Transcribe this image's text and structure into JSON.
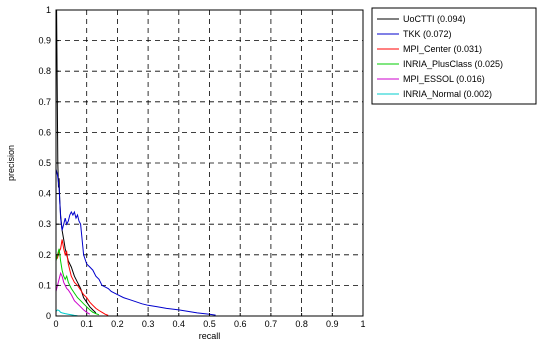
{
  "chart_data": {
    "type": "line",
    "title": "",
    "xlabel": "recall",
    "ylabel": "precision",
    "xlim": [
      0,
      1
    ],
    "ylim": [
      0,
      1
    ],
    "x_ticks": [
      "0",
      "0.1",
      "0.2",
      "0.3",
      "0.4",
      "0.5",
      "0.6",
      "0.7",
      "0.8",
      "0.9",
      "1"
    ],
    "y_ticks": [
      "0",
      "0.1",
      "0.2",
      "0.3",
      "0.4",
      "0.5",
      "0.6",
      "0.7",
      "0.8",
      "0.9",
      "1"
    ],
    "grid": true,
    "grid_style": "dashed",
    "legend_position": "outside-top-right",
    "series": [
      {
        "name": "UoCTTI (0.094)",
        "color": "#000000",
        "points": [
          [
            0,
            1.0
          ],
          [
            0.002,
            1.0
          ],
          [
            0.004,
            0.75
          ],
          [
            0.006,
            0.5
          ],
          [
            0.008,
            0.42
          ],
          [
            0.01,
            0.45
          ],
          [
            0.012,
            0.38
          ],
          [
            0.015,
            0.33
          ],
          [
            0.018,
            0.3
          ],
          [
            0.02,
            0.28
          ],
          [
            0.025,
            0.25
          ],
          [
            0.03,
            0.22
          ],
          [
            0.035,
            0.2
          ],
          [
            0.04,
            0.18
          ],
          [
            0.05,
            0.16
          ],
          [
            0.06,
            0.13
          ],
          [
            0.07,
            0.11
          ],
          [
            0.08,
            0.09
          ],
          [
            0.09,
            0.06
          ],
          [
            0.1,
            0.045
          ],
          [
            0.11,
            0.03
          ],
          [
            0.12,
            0.02
          ],
          [
            0.13,
            0.01
          ]
        ]
      },
      {
        "name": "TKK (0.072)",
        "color": "#0000cc",
        "points": [
          [
            0,
            0.48
          ],
          [
            0.005,
            0.46
          ],
          [
            0.01,
            0.42
          ],
          [
            0.015,
            0.32
          ],
          [
            0.02,
            0.28
          ],
          [
            0.025,
            0.3
          ],
          [
            0.03,
            0.32
          ],
          [
            0.035,
            0.3
          ],
          [
            0.04,
            0.31
          ],
          [
            0.045,
            0.33
          ],
          [
            0.05,
            0.34
          ],
          [
            0.055,
            0.33
          ],
          [
            0.06,
            0.34
          ],
          [
            0.065,
            0.32
          ],
          [
            0.07,
            0.33
          ],
          [
            0.075,
            0.31
          ],
          [
            0.08,
            0.3
          ],
          [
            0.085,
            0.25
          ],
          [
            0.09,
            0.2
          ],
          [
            0.1,
            0.17
          ],
          [
            0.11,
            0.16
          ],
          [
            0.12,
            0.15
          ],
          [
            0.13,
            0.13
          ],
          [
            0.14,
            0.12
          ],
          [
            0.15,
            0.1
          ],
          [
            0.16,
            0.095
          ],
          [
            0.17,
            0.09
          ],
          [
            0.18,
            0.08
          ],
          [
            0.2,
            0.07
          ],
          [
            0.22,
            0.06
          ],
          [
            0.25,
            0.05
          ],
          [
            0.28,
            0.04
          ],
          [
            0.3,
            0.035
          ],
          [
            0.33,
            0.03
          ],
          [
            0.36,
            0.025
          ],
          [
            0.4,
            0.02
          ],
          [
            0.43,
            0.015
          ],
          [
            0.46,
            0.01
          ],
          [
            0.5,
            0.006
          ],
          [
            0.52,
            0.003
          ]
        ]
      },
      {
        "name": "MPI_Center (0.031)",
        "color": "#ff0000",
        "points": [
          [
            0,
            0.2
          ],
          [
            0.005,
            0.19
          ],
          [
            0.01,
            0.21
          ],
          [
            0.015,
            0.22
          ],
          [
            0.02,
            0.25
          ],
          [
            0.025,
            0.22
          ],
          [
            0.03,
            0.2
          ],
          [
            0.035,
            0.21
          ],
          [
            0.04,
            0.17
          ],
          [
            0.045,
            0.15
          ],
          [
            0.05,
            0.13
          ],
          [
            0.055,
            0.12
          ],
          [
            0.06,
            0.11
          ],
          [
            0.07,
            0.1
          ],
          [
            0.08,
            0.085
          ],
          [
            0.09,
            0.07
          ],
          [
            0.1,
            0.06
          ],
          [
            0.11,
            0.045
          ],
          [
            0.12,
            0.035
          ],
          [
            0.13,
            0.025
          ],
          [
            0.14,
            0.018
          ],
          [
            0.15,
            0.012
          ],
          [
            0.16,
            0.006
          ],
          [
            0.17,
            0.002
          ]
        ]
      },
      {
        "name": "INRIA_PlusClass (0.025)",
        "color": "#00cc00",
        "points": [
          [
            0,
            0.18
          ],
          [
            0.005,
            0.2
          ],
          [
            0.01,
            0.22
          ],
          [
            0.015,
            0.18
          ],
          [
            0.02,
            0.15
          ],
          [
            0.025,
            0.13
          ],
          [
            0.03,
            0.12
          ],
          [
            0.035,
            0.13
          ],
          [
            0.04,
            0.11
          ],
          [
            0.05,
            0.09
          ],
          [
            0.06,
            0.075
          ],
          [
            0.07,
            0.06
          ],
          [
            0.08,
            0.05
          ],
          [
            0.09,
            0.04
          ],
          [
            0.1,
            0.03
          ],
          [
            0.11,
            0.02
          ],
          [
            0.12,
            0.012
          ],
          [
            0.13,
            0.008
          ],
          [
            0.14,
            0.004
          ]
        ]
      },
      {
        "name": "MPI_ESSOL (0.016)",
        "color": "#cc00cc",
        "points": [
          [
            0,
            0.08
          ],
          [
            0.005,
            0.1
          ],
          [
            0.01,
            0.12
          ],
          [
            0.015,
            0.14
          ],
          [
            0.02,
            0.13
          ],
          [
            0.025,
            0.11
          ],
          [
            0.03,
            0.1
          ],
          [
            0.035,
            0.09
          ],
          [
            0.04,
            0.085
          ],
          [
            0.05,
            0.07
          ],
          [
            0.06,
            0.05
          ],
          [
            0.07,
            0.04
          ],
          [
            0.08,
            0.03
          ],
          [
            0.09,
            0.02
          ],
          [
            0.1,
            0.012
          ],
          [
            0.11,
            0.006
          ]
        ]
      },
      {
        "name": "INRIA_Normal (0.002)",
        "color": "#00cccc",
        "points": [
          [
            0,
            0.015
          ],
          [
            0.005,
            0.02
          ],
          [
            0.01,
            0.018
          ],
          [
            0.015,
            0.012
          ],
          [
            0.02,
            0.01
          ],
          [
            0.03,
            0.008
          ],
          [
            0.04,
            0.006
          ],
          [
            0.05,
            0.004
          ],
          [
            0.06,
            0.002
          ],
          [
            0.07,
            0.001
          ]
        ]
      }
    ]
  }
}
